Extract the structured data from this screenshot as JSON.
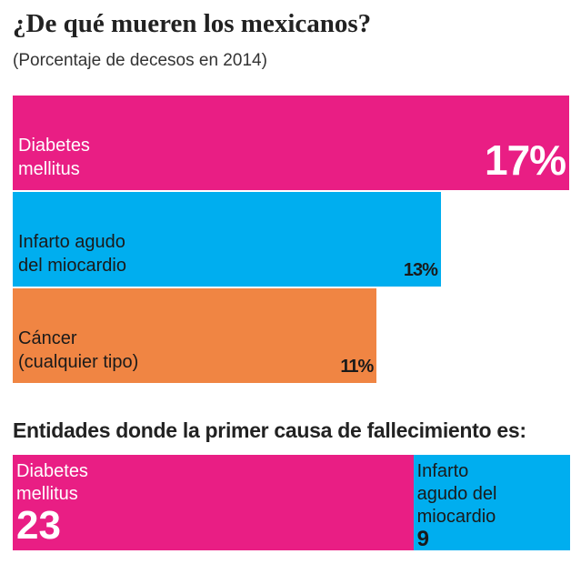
{
  "colors": {
    "diabetes": "#e91e84",
    "infarto": "#00aeef",
    "cancer": "#f08543"
  },
  "chart_data": [
    {
      "type": "bar",
      "title": "¿De qué mueren los mexicanos?",
      "subtitle": "(Porcentaje de decesos en 2014)",
      "categories": [
        "Diabetes mellitus",
        "Infarto agudo del miocardio",
        "Cáncer (cualquier tipo)"
      ],
      "values": [
        17,
        13,
        11
      ],
      "value_labels": [
        "17%",
        "13%",
        "11%"
      ],
      "label_lines": [
        [
          "Diabetes",
          "mellitus"
        ],
        [
          "Infarto agudo",
          "del miocardio"
        ],
        [
          "Cáncer",
          "(cualquier tipo)"
        ]
      ],
      "orientation": "horizontal"
    },
    {
      "type": "bar",
      "stacked": true,
      "title": "Entidades donde la primer causa de fallecimiento es:",
      "categories": [
        "Diabetes mellitus",
        "Infarto agudo del miocardio"
      ],
      "values": [
        23,
        9
      ],
      "value_labels": [
        "23",
        "9"
      ],
      "label_lines": [
        [
          "Diabetes",
          "mellitus"
        ],
        [
          "Infarto",
          "agudo del",
          "miocardio"
        ]
      ]
    }
  ]
}
